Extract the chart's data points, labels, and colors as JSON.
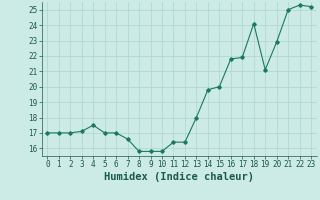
{
  "x": [
    0,
    1,
    2,
    3,
    4,
    5,
    6,
    7,
    8,
    9,
    10,
    11,
    12,
    13,
    14,
    15,
    16,
    17,
    18,
    19,
    20,
    21,
    22,
    23
  ],
  "y": [
    17.0,
    17.0,
    17.0,
    17.1,
    17.5,
    17.0,
    17.0,
    16.6,
    15.8,
    15.8,
    15.8,
    16.4,
    16.4,
    18.0,
    19.8,
    20.0,
    21.8,
    21.9,
    24.1,
    21.1,
    22.9,
    25.0,
    25.3,
    25.2
  ],
  "xlabel": "Humidex (Indice chaleur)",
  "ylim": [
    15.5,
    25.5
  ],
  "xlim": [
    -0.5,
    23.5
  ],
  "yticks": [
    16,
    17,
    18,
    19,
    20,
    21,
    22,
    23,
    24,
    25
  ],
  "xticks": [
    0,
    1,
    2,
    3,
    4,
    5,
    6,
    7,
    8,
    9,
    10,
    11,
    12,
    13,
    14,
    15,
    16,
    17,
    18,
    19,
    20,
    21,
    22,
    23
  ],
  "xtick_labels": [
    "0",
    "1",
    "2",
    "3",
    "4",
    "5",
    "6",
    "7",
    "8",
    "9",
    "10",
    "11",
    "12",
    "13",
    "14",
    "15",
    "16",
    "17",
    "18",
    "19",
    "20",
    "21",
    "22",
    "23"
  ],
  "line_color": "#1a7a5e",
  "marker": "D",
  "marker_size": 1.8,
  "linewidth": 0.8,
  "bg_color": "#cceae6",
  "grid_color": "#b0d4ce",
  "tick_color": "#1a5a48",
  "label_color": "#1a5a48",
  "xlabel_fontsize": 7.5,
  "tick_fontsize": 5.5
}
